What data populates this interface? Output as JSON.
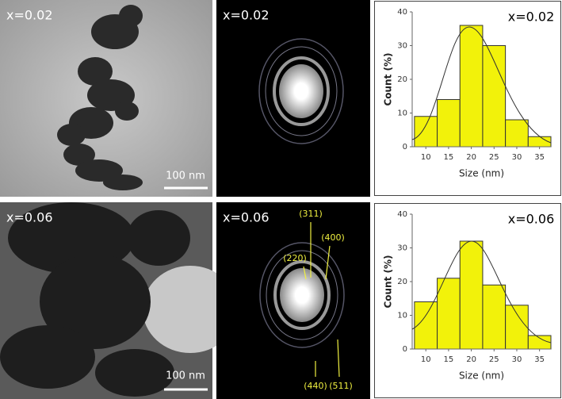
{
  "panels": {
    "tem_top": {
      "label": "x=0.02",
      "scale_bar": "100 nm"
    },
    "saed_top": {
      "label": "x=0.02"
    },
    "tem_bottom": {
      "label": "x=0.06",
      "scale_bar": "100 nm"
    },
    "saed_bottom": {
      "label": "x=0.06",
      "planes": [
        "(311)",
        "(400)",
        "(220)",
        "(440)",
        "(511)"
      ]
    }
  },
  "chart_data": [
    {
      "type": "histogram",
      "annotation": "x=0.02",
      "xlabel": "Size (nm)",
      "ylabel": "Count (%)",
      "bins": [
        7.5,
        12.5,
        17.5,
        22.5,
        27.5,
        32.5,
        37.5
      ],
      "values": [
        9,
        14,
        36,
        30,
        8,
        3
      ],
      "color": "#f2f20a",
      "xlim": [
        7,
        37.5
      ],
      "ylim": [
        0,
        40
      ],
      "xticks": [
        10,
        15,
        20,
        25,
        30,
        35
      ],
      "yticks": [
        0,
        10,
        20,
        30,
        40
      ]
    },
    {
      "type": "histogram",
      "annotation": "x=0.06",
      "xlabel": "Size (nm)",
      "ylabel": "Count (%)",
      "bins": [
        7.5,
        12.5,
        17.5,
        22.5,
        27.5,
        32.5,
        37.5
      ],
      "values": [
        14,
        21,
        32,
        19,
        13,
        4
      ],
      "color": "#f2f20a",
      "xlim": [
        7,
        37.5
      ],
      "ylim": [
        0,
        40
      ],
      "xticks": [
        10,
        15,
        20,
        25,
        30,
        35
      ],
      "yticks": [
        0,
        10,
        20,
        30,
        40
      ]
    }
  ]
}
